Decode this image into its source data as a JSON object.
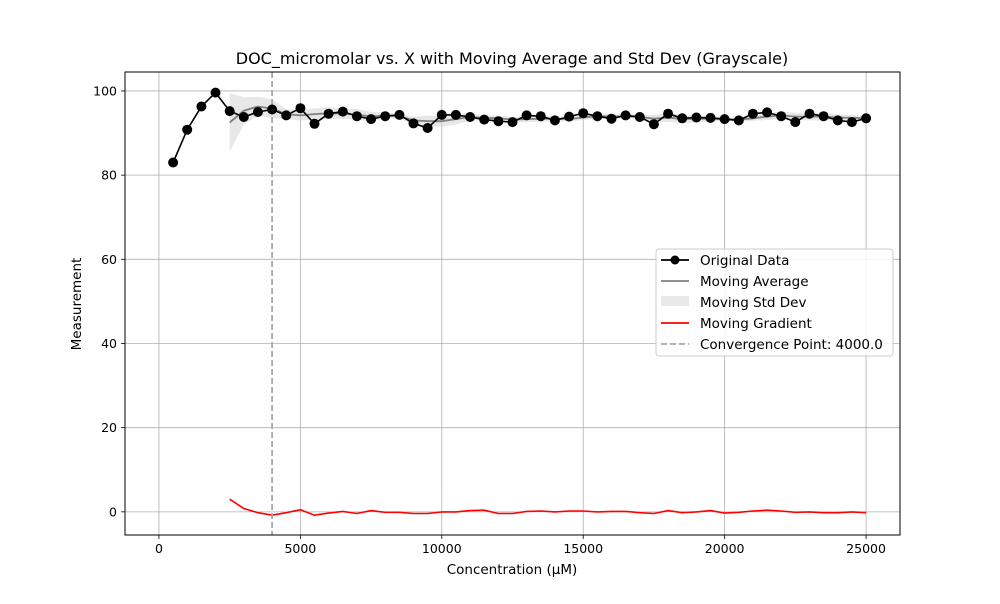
{
  "chart_data": {
    "type": "line",
    "title": "DOC_micromolar vs. X with Moving Average and Std Dev (Grayscale)",
    "xlabel": "Concentration (µM)",
    "ylabel": "Measurement",
    "xlim": [
      -1200,
      26200
    ],
    "ylim": [
      -5.5,
      104.5
    ],
    "xticks": [
      0,
      5000,
      10000,
      15000,
      20000,
      25000
    ],
    "yticks": [
      0,
      20,
      40,
      60,
      80,
      100
    ],
    "grid": true,
    "legend_position": "center-right",
    "convergence_x": 4000,
    "colors": {
      "original": "#000000",
      "moving_average": "#808080",
      "std_band": "#d3d3d3",
      "gradient": "#ff0000",
      "convergence": "#a9a9a9"
    },
    "legend": [
      {
        "label": "Original Data",
        "kind": "line-marker"
      },
      {
        "label": "Moving Average",
        "kind": "line"
      },
      {
        "label": "Moving Std Dev",
        "kind": "band"
      },
      {
        "label": "Moving Gradient",
        "kind": "line"
      },
      {
        "label": "Convergence Point: 4000.0",
        "kind": "dashed"
      }
    ],
    "x": [
      500,
      1000,
      1500,
      2000,
      2500,
      3000,
      3500,
      4000,
      4500,
      5000,
      5500,
      6000,
      6500,
      7000,
      7500,
      8000,
      8500,
      9000,
      9500,
      10000,
      10500,
      11000,
      11500,
      12000,
      12500,
      13000,
      13500,
      14000,
      14500,
      15000,
      15500,
      16000,
      16500,
      17000,
      17500,
      18000,
      18500,
      19000,
      19500,
      20000,
      20500,
      21000,
      21500,
      22000,
      22500,
      23000,
      23500,
      24000,
      24500,
      25000
    ],
    "series": [
      {
        "name": "Original Data",
        "values": [
          83.0,
          90.8,
          96.3,
          99.6,
          95.2,
          93.8,
          95.0,
          95.6,
          94.2,
          95.9,
          92.2,
          94.6,
          95.1,
          94.0,
          93.3,
          94.0,
          94.3,
          92.3,
          91.2,
          94.3,
          94.3,
          93.8,
          93.2,
          92.8,
          92.6,
          94.2,
          94.0,
          93.0,
          93.9,
          94.7,
          94.0,
          93.4,
          94.2,
          93.8,
          92.1,
          94.6,
          93.5,
          93.7,
          93.6,
          93.3,
          93.0,
          94.6,
          94.9,
          94.0,
          92.6,
          94.6,
          94.0,
          93.0,
          92.6,
          93.5
        ]
      },
      {
        "name": "Moving Average",
        "values": [
          null,
          null,
          null,
          null,
          92.5,
          95.3,
          96.3,
          95.8,
          94.5,
          94.2,
          94.5,
          94.7,
          94.6,
          94.4,
          93.9,
          94.2,
          94.0,
          93.0,
          92.8,
          92.8,
          93.3,
          93.8,
          93.6,
          93.5,
          93.2,
          93.3,
          93.4,
          93.4,
          93.3,
          93.7,
          94.0,
          93.9,
          94.0,
          93.8,
          93.4,
          93.7,
          93.3,
          93.4,
          93.4,
          93.3,
          93.2,
          93.5,
          93.9,
          94.2,
          93.9,
          93.9,
          93.9,
          93.7,
          93.6,
          93.5
        ]
      },
      {
        "name": "Moving Std Dev",
        "values": [
          null,
          null,
          null,
          null,
          7.0,
          3.2,
          2.3,
          2.2,
          1.2,
          1.2,
          1.4,
          1.4,
          1.2,
          1.3,
          1.1,
          0.7,
          0.6,
          0.9,
          1.3,
          1.3,
          1.3,
          0.9,
          0.6,
          0.6,
          0.6,
          0.7,
          0.7,
          0.6,
          0.6,
          0.6,
          0.6,
          0.5,
          0.5,
          0.5,
          0.9,
          1.0,
          1.0,
          0.9,
          0.6,
          0.5,
          0.5,
          0.6,
          0.8,
          0.9,
          0.9,
          0.9,
          0.9,
          0.7,
          0.7,
          0.6
        ]
      },
      {
        "name": "Moving Gradient",
        "values": [
          null,
          null,
          null,
          null,
          3.0,
          0.8,
          -0.2,
          -0.8,
          -0.2,
          0.5,
          -0.8,
          -0.3,
          0.1,
          -0.4,
          0.3,
          -0.1,
          -0.1,
          -0.4,
          -0.4,
          0.0,
          0.0,
          0.3,
          0.4,
          -0.4,
          -0.4,
          0.1,
          0.2,
          0.0,
          0.2,
          0.2,
          0.0,
          0.1,
          0.1,
          -0.2,
          -0.4,
          0.3,
          -0.2,
          0.0,
          0.3,
          -0.3,
          -0.1,
          0.2,
          0.4,
          0.2,
          -0.1,
          0.0,
          -0.2,
          -0.2,
          0.0,
          -0.2
        ]
      }
    ]
  }
}
